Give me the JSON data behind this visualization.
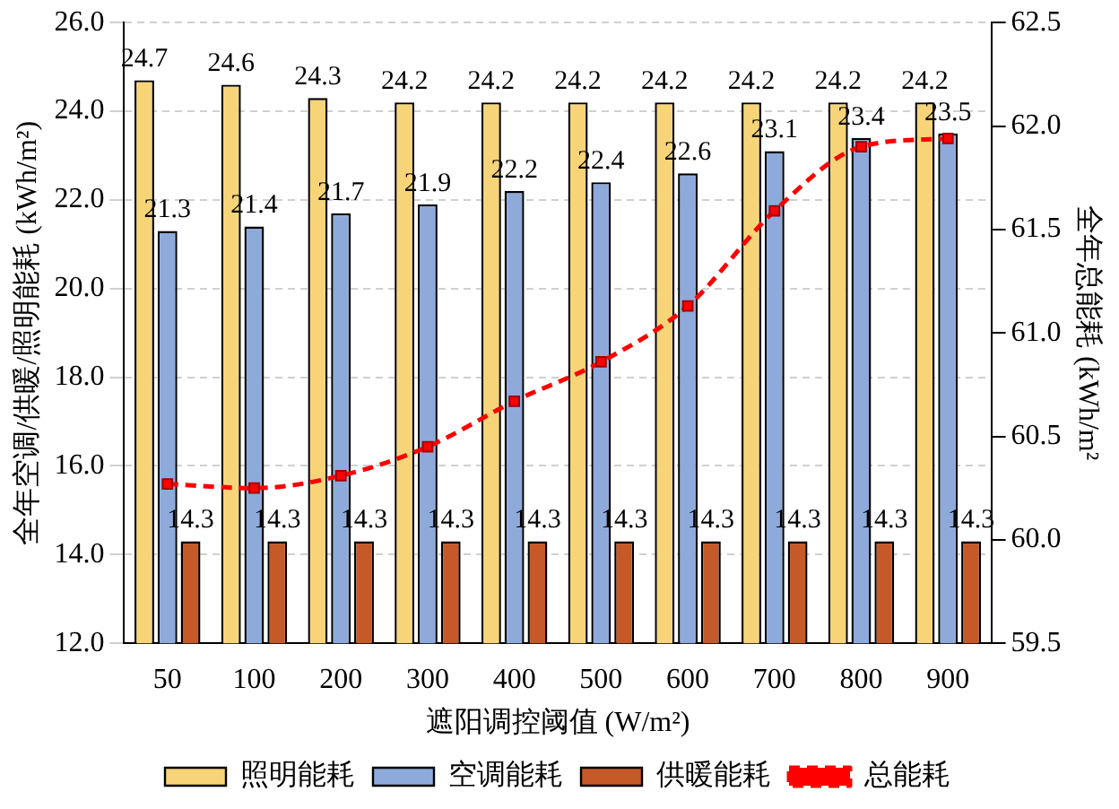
{
  "chart_data": {
    "type": "bar",
    "xlabel": "遮阳调控阈值 (W/m²)",
    "ylabel": "全年空调/供暖/照明能耗 (kWh/m²)",
    "y2label": "全年总能耗 (kWh/m²",
    "categories": [
      "50",
      "100",
      "200",
      "300",
      "400",
      "500",
      "600",
      "700",
      "800",
      "900"
    ],
    "series": [
      {
        "name": "照明能耗",
        "color": "#f7d478",
        "values": [
          24.7,
          24.6,
          24.3,
          24.2,
          24.2,
          24.2,
          24.2,
          24.2,
          24.2,
          24.2
        ],
        "value_labels": [
          "24.7",
          "24.6",
          "24.3",
          "24.2",
          "24.2",
          "24.2",
          "24.2",
          "24.2",
          "24.2",
          "24.2"
        ]
      },
      {
        "name": "空调能耗",
        "color": "#8eaadb",
        "values": [
          21.3,
          21.4,
          21.7,
          21.9,
          22.2,
          22.4,
          22.6,
          23.1,
          23.4,
          23.5
        ],
        "value_labels": [
          "21.3",
          "21.4",
          "21.7",
          "21.9",
          "22.2",
          "22.4",
          "22.6",
          "23.1",
          "23.4",
          "23.5"
        ]
      },
      {
        "name": "供暖能耗",
        "color": "#c55a28",
        "values": [
          14.3,
          14.3,
          14.3,
          14.3,
          14.3,
          14.3,
          14.3,
          14.3,
          14.3,
          14.3
        ],
        "value_labels": [
          "14.3",
          "14.3",
          "14.3",
          "14.3",
          "14.3",
          "14.3",
          "14.3",
          "14.3",
          "14.3",
          "14.3"
        ]
      },
      {
        "name": "总能耗",
        "type": "line",
        "axis": "y2",
        "color": "#ff0000",
        "marker": "square",
        "line_style": "dashed",
        "values": [
          60.27,
          60.25,
          60.31,
          60.45,
          60.67,
          60.86,
          61.13,
          61.59,
          61.9,
          61.94
        ]
      }
    ],
    "ylim": [
      12,
      26
    ],
    "yticks": [
      {
        "value": 12,
        "label": "12.0"
      },
      {
        "value": 14,
        "label": "14.0"
      },
      {
        "value": 16,
        "label": "16.0"
      },
      {
        "value": 18,
        "label": "18.0"
      },
      {
        "value": 20,
        "label": "20.0"
      },
      {
        "value": 22,
        "label": "22.0"
      },
      {
        "value": 24,
        "label": "24.0"
      },
      {
        "value": 26,
        "label": "26.0"
      }
    ],
    "y2lim": [
      59.5,
      62.5
    ],
    "y2ticks": [
      {
        "value": 59.5,
        "label": "59.5"
      },
      {
        "value": 60,
        "label": "60.0"
      },
      {
        "value": 60.5,
        "label": "60.5"
      },
      {
        "value": 61,
        "label": "61.0"
      },
      {
        "value": 61.5,
        "label": "61.5"
      },
      {
        "value": 62,
        "label": "62.0"
      },
      {
        "value": 62.5,
        "label": "62.5"
      }
    ],
    "grid": "y",
    "legend": "bottom"
  }
}
